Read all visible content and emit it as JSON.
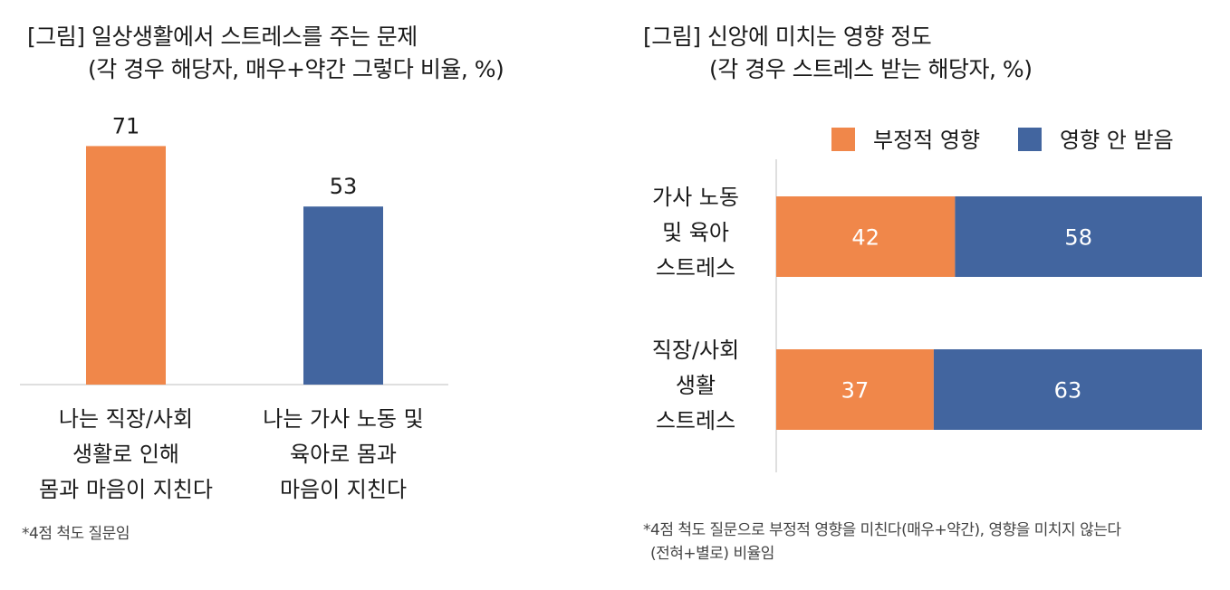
{
  "left_chart": {
    "title_line1": "[그림] 일상생활에서 스트레스를 주는 문제",
    "title_line2": "(각 경우 해당자, 매우+약간 그렇다 비율, %)",
    "note": "*4점 척도 질문임"
  },
  "right_chart": {
    "title_line1": "[그림] 신앙에 미치는 영향 정도",
    "title_line2": "(각 경우 스트레스 받는 해당자, %)",
    "note_line1": "*4점 척도 질문으로 부정적 영향을 미친다(매우+약간), 영향을 미치지 않는다",
    "note_line2": "(전혀+별로) 비율임"
  },
  "chart_data": [
    {
      "type": "bar",
      "title": "[그림] 일상생활에서 스트레스를 주는 문제",
      "subtitle": "(각 경우 해당자, 매우+약간 그렇다 비율, %)",
      "categories": [
        [
          "나는 직장/사회",
          "생활로 인해",
          "몸과 마음이 지친다"
        ],
        [
          "나는 가사 노동 및",
          "육아로 몸과",
          "마음이 지친다"
        ]
      ],
      "values": [
        71,
        53
      ],
      "colors": [
        "#F0874A",
        "#42659F"
      ],
      "ylim": [
        0,
        80
      ],
      "grid": false
    },
    {
      "type": "bar",
      "orientation": "horizontal",
      "stacked": true,
      "title": "[그림] 신앙에 미치는 영향 정도",
      "subtitle": "(각 경우 스트레스 받는 해당자, %)",
      "categories": [
        [
          "가사 노동",
          "및 육아",
          "스트레스"
        ],
        [
          "직장/사회",
          "생활",
          "스트레스"
        ]
      ],
      "series": [
        {
          "name": "부정적 영향",
          "values": [
            42,
            37
          ],
          "color": "#F0874A"
        },
        {
          "name": "영향 안 받음",
          "values": [
            58,
            63
          ],
          "color": "#42659F"
        }
      ],
      "xlim": [
        0,
        100
      ],
      "legend_position": "top",
      "grid": false
    }
  ]
}
